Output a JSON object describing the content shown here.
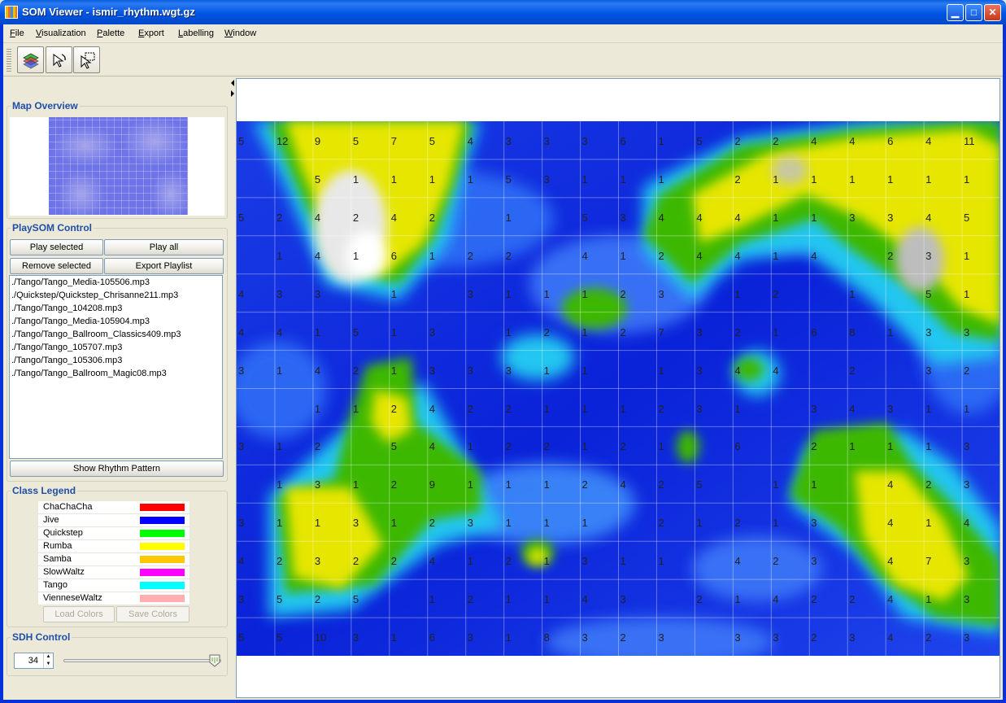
{
  "window": {
    "title": "SOM Viewer - ismir_rhythm.wgt.gz",
    "minimize_icon": "minimize-icon",
    "maximize_icon": "maximize-icon",
    "close_icon": "close-icon"
  },
  "menu": [
    "File",
    "Visualization",
    "Palette",
    "Export",
    "Labelling",
    "Window"
  ],
  "toolbar": {
    "tools": [
      "layers-tool-icon",
      "pan-cursor-icon",
      "selection-cursor-icon"
    ]
  },
  "map_overview": {
    "title": "Map Overview"
  },
  "playsom": {
    "title": "PlaySOM Control",
    "play_selected": "Play selected",
    "play_all": "Play all",
    "remove_selected": "Remove selected",
    "export_playlist": "Export Playlist",
    "playlist": [
      "./Tango/Tango_Media-105506.mp3",
      "./Quickstep/Quickstep_Chrisanne211.mp3",
      "./Tango/Tango_104208.mp3",
      "./Tango/Tango_Media-105904.mp3",
      "./Tango/Tango_Ballroom_Classics409.mp3",
      "./Tango/Tango_105707.mp3",
      "./Tango/Tango_105306.mp3",
      "./Tango/Tango_Ballroom_Magic08.mp3"
    ],
    "show_rhythm": "Show Rhythm Pattern"
  },
  "class_legend": {
    "title": "Class Legend",
    "classes": [
      {
        "name": "ChaChaCha",
        "color": "#FF0000"
      },
      {
        "name": "Jive",
        "color": "#0000FF"
      },
      {
        "name": "Quickstep",
        "color": "#00FF00"
      },
      {
        "name": "Rumba",
        "color": "#FFFF00"
      },
      {
        "name": "Samba",
        "color": "#FFC800"
      },
      {
        "name": "SlowWaltz",
        "color": "#FF00FF"
      },
      {
        "name": "Tango",
        "color": "#00FFFF"
      },
      {
        "name": "VienneseWaltz",
        "color": "#FFAFAF"
      }
    ],
    "load_colors": "Load Colors",
    "save_colors": "Save Colors"
  },
  "sdh": {
    "title": "SDH Control",
    "value": "34",
    "slider_fraction": 0.98
  },
  "map": {
    "rows": 14,
    "cols": 20,
    "numbers": [
      [
        "5",
        "12",
        "9",
        "5",
        "7",
        "5",
        "4",
        "3",
        "3",
        "3",
        "6",
        "1",
        "5",
        "2",
        "2",
        "4",
        "4",
        "6",
        "4",
        "11"
      ],
      [
        "",
        "",
        "5",
        "1",
        "1",
        "1",
        "1",
        "5",
        "3",
        "1",
        "1",
        "1",
        "",
        "2",
        "1",
        "1",
        "1",
        "1",
        "1",
        "1"
      ],
      [
        "5",
        "2",
        "4",
        "2",
        "4",
        "2",
        "",
        "1",
        "",
        "5",
        "3",
        "4",
        "4",
        "4",
        "1",
        "1",
        "3",
        "3",
        "4",
        "5"
      ],
      [
        "",
        "1",
        "4",
        "1",
        "6",
        "1",
        "2",
        "2",
        "",
        "4",
        "1",
        "2",
        "4",
        "4",
        "1",
        "4",
        "",
        "2",
        "3",
        "1"
      ],
      [
        "4",
        "3",
        "3",
        "",
        "1",
        "",
        "3",
        "1",
        "1",
        "1",
        "2",
        "3",
        "",
        "1",
        "2",
        "",
        "1",
        "",
        "5",
        "1"
      ],
      [
        "4",
        "4",
        "1",
        "5",
        "1",
        "3",
        "",
        "1",
        "2",
        "1",
        "2",
        "7",
        "3",
        "2",
        "1",
        "6",
        "8",
        "1",
        "3",
        "3"
      ],
      [
        "3",
        "1",
        "4",
        "2",
        "1",
        "3",
        "3",
        "3",
        "1",
        "1",
        "",
        "1",
        "3",
        "4",
        "4",
        "",
        "2",
        "",
        "3",
        "2"
      ],
      [
        "",
        "",
        "1",
        "1",
        "2",
        "4",
        "2",
        "2",
        "1",
        "1",
        "1",
        "2",
        "3",
        "1",
        "",
        "3",
        "4",
        "3",
        "1",
        "1"
      ],
      [
        "3",
        "1",
        "2",
        "",
        "5",
        "4",
        "1",
        "2",
        "2",
        "1",
        "2",
        "1",
        "",
        "6",
        "",
        "2",
        "1",
        "1",
        "1",
        "3"
      ],
      [
        "",
        "1",
        "3",
        "1",
        "2",
        "9",
        "1",
        "1",
        "1",
        "2",
        "4",
        "2",
        "5",
        "",
        "1",
        "1",
        "",
        "4",
        "2",
        "3"
      ],
      [
        "3",
        "1",
        "1",
        "3",
        "1",
        "2",
        "3",
        "1",
        "1",
        "1",
        "",
        "2",
        "1",
        "2",
        "1",
        "3",
        "",
        "4",
        "1",
        "4"
      ],
      [
        "4",
        "2",
        "3",
        "2",
        "2",
        "4",
        "1",
        "2",
        "1",
        "3",
        "1",
        "1",
        "",
        "4",
        "2",
        "3",
        "",
        "4",
        "7",
        "3"
      ],
      [
        "3",
        "5",
        "2",
        "5",
        "",
        "1",
        "2",
        "1",
        "1",
        "4",
        "3",
        "",
        "2",
        "1",
        "4",
        "2",
        "2",
        "4",
        "1",
        "3"
      ],
      [
        "5",
        "5",
        "10",
        "3",
        "1",
        "6",
        "3",
        "1",
        "8",
        "3",
        "2",
        "3",
        "",
        "3",
        "3",
        "2",
        "3",
        "4",
        "2",
        "3"
      ]
    ]
  }
}
